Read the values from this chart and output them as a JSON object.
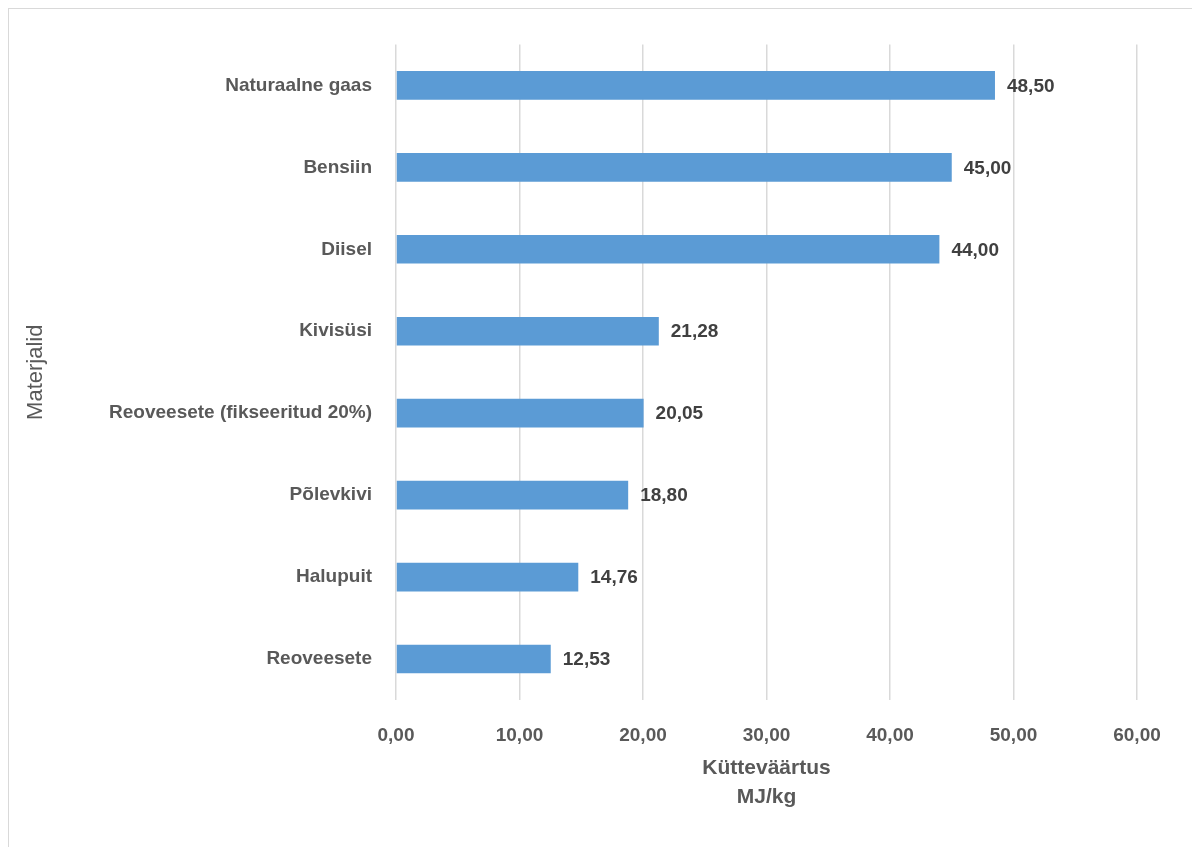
{
  "chart_data": {
    "type": "bar",
    "orientation": "horizontal",
    "categories": [
      "Naturaalne gaas",
      "Bensiin",
      "Diisel",
      "Kivisüsi",
      "Reoveesete (fikseeritud 20%)",
      "Põlevkivi",
      "Halupuit",
      "Reoveesete"
    ],
    "values": [
      48.5,
      45,
      44,
      21.28,
      20.05,
      18.8,
      14.76,
      12.53
    ],
    "value_labels": [
      "48,50",
      "45,00",
      "44,00",
      "21,28",
      "20,05",
      "18,80",
      "14,76",
      "12,53"
    ],
    "color": "#5b9bd5",
    "xlim": [
      0,
      60
    ],
    "xticks": [
      {
        "value": 0,
        "label": "0,00"
      },
      {
        "value": 10,
        "label": "10,00"
      },
      {
        "value": 20,
        "label": "20,00"
      },
      {
        "value": 30,
        "label": "30,00"
      },
      {
        "value": 40,
        "label": "40,00"
      },
      {
        "value": 50,
        "label": "50,00"
      },
      {
        "value": 60,
        "label": "60,00"
      }
    ],
    "xlabel": "Kütteväärtus\nMJ/kg",
    "ylabel": "Materjalid",
    "grid": "x"
  }
}
